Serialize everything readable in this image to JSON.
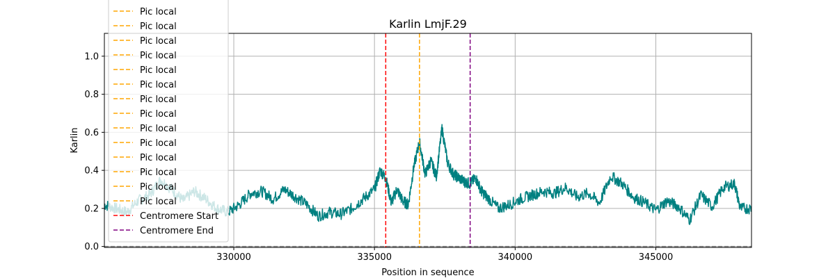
{
  "chart_data": {
    "type": "line",
    "title": "Karlin LmjF.29",
    "xlabel": "Position in sequence",
    "ylabel": "Karlin",
    "xlim": [
      325400,
      348400
    ],
    "ylim": [
      -0.005,
      1.12
    ],
    "xticks": [
      330000,
      335000,
      340000,
      345000
    ],
    "xtick_labels": [
      "330000",
      "335000",
      "340000",
      "345000"
    ],
    "yticks": [
      0.0,
      0.2,
      0.4,
      0.6,
      0.8,
      1.0
    ],
    "ytick_labels": [
      "0.0",
      "0.2",
      "0.4",
      "0.6",
      "0.8",
      "1.0"
    ],
    "grid": true,
    "legend_position": "upper-left",
    "colors": {
      "series": "#008080",
      "pic_local": "#ffa500",
      "centromere_start": "#ff0000",
      "centromere_end": "#800080",
      "baseline": "#808080",
      "grid": "#b0b0b0"
    },
    "series": [
      {
        "name": "Karlin",
        "x": [
          325400,
          325800,
          326200,
          326600,
          327000,
          327400,
          327800,
          328200,
          328600,
          329000,
          329400,
          329800,
          330200,
          330600,
          331000,
          331400,
          331800,
          332200,
          332600,
          333000,
          333400,
          333800,
          334200,
          334600,
          335000,
          335200,
          335400,
          335600,
          335800,
          336000,
          336200,
          336400,
          336600,
          336800,
          337000,
          337200,
          337400,
          337600,
          337800,
          338000,
          338200,
          338400,
          338600,
          338800,
          339000,
          339400,
          339800,
          340200,
          340600,
          341000,
          341400,
          341800,
          342200,
          342600,
          343000,
          343400,
          343800,
          344200,
          344600,
          345000,
          345400,
          345800,
          346200,
          346600,
          347000,
          347400,
          347800,
          348000,
          348400
        ],
        "y": [
          0.22,
          0.2,
          0.18,
          0.24,
          0.27,
          0.35,
          0.3,
          0.24,
          0.29,
          0.25,
          0.2,
          0.18,
          0.22,
          0.28,
          0.29,
          0.25,
          0.3,
          0.26,
          0.22,
          0.16,
          0.18,
          0.17,
          0.2,
          0.25,
          0.3,
          0.4,
          0.36,
          0.23,
          0.3,
          0.24,
          0.22,
          0.42,
          0.55,
          0.38,
          0.45,
          0.37,
          0.62,
          0.44,
          0.38,
          0.36,
          0.34,
          0.33,
          0.36,
          0.29,
          0.26,
          0.2,
          0.22,
          0.25,
          0.27,
          0.29,
          0.28,
          0.31,
          0.26,
          0.28,
          0.23,
          0.37,
          0.33,
          0.26,
          0.23,
          0.19,
          0.24,
          0.21,
          0.14,
          0.27,
          0.21,
          0.31,
          0.33,
          0.2,
          0.2
        ]
      }
    ],
    "vlines": [
      {
        "name": "Pic local",
        "x": 336600,
        "style": "dashed",
        "color_key": "pic_local"
      },
      {
        "name": "Centromere Start",
        "x": 335400,
        "style": "dashed",
        "color_key": "centromere_start"
      },
      {
        "name": "Centromere End",
        "x": 338400,
        "style": "dashed",
        "color_key": "centromere_end"
      }
    ],
    "hlines": [
      {
        "y": 0.0,
        "style": "dashed",
        "color_key": "baseline"
      }
    ],
    "legend": {
      "entries": [
        {
          "label": "Pic local",
          "color_key": "pic_local"
        },
        {
          "label": "Pic local",
          "color_key": "pic_local"
        },
        {
          "label": "Pic local",
          "color_key": "pic_local"
        },
        {
          "label": "Pic local",
          "color_key": "pic_local"
        },
        {
          "label": "Pic local",
          "color_key": "pic_local"
        },
        {
          "label": "Pic local",
          "color_key": "pic_local"
        },
        {
          "label": "Pic local",
          "color_key": "pic_local"
        },
        {
          "label": "Pic local",
          "color_key": "pic_local"
        },
        {
          "label": "Pic local",
          "color_key": "pic_local"
        },
        {
          "label": "Pic local",
          "color_key": "pic_local"
        },
        {
          "label": "Pic local",
          "color_key": "pic_local"
        },
        {
          "label": "Pic local",
          "color_key": "pic_local"
        },
        {
          "label": "Pic local",
          "color_key": "pic_local"
        },
        {
          "label": "Pic local",
          "color_key": "pic_local"
        },
        {
          "label": "Pic local",
          "color_key": "pic_local"
        },
        {
          "label": "Centromere Start",
          "color_key": "centromere_start"
        },
        {
          "label": "Centromere End",
          "color_key": "centromere_end"
        }
      ]
    }
  }
}
